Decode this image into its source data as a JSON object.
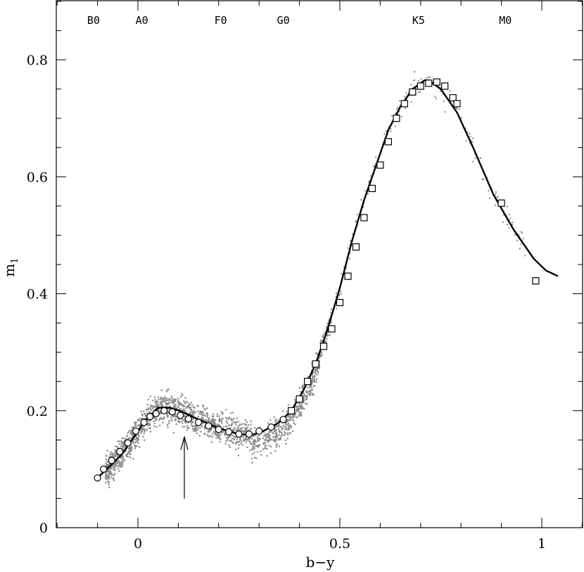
{
  "chart_data": {
    "type": "scatter",
    "xlabel": "b−y",
    "ylabel": "m",
    "ylabel_subscript": "1",
    "xlim": [
      -0.2,
      1.1
    ],
    "ylim": [
      0,
      0.9
    ],
    "x_ticks": [
      {
        "value": 0,
        "label": "0"
      },
      {
        "value": 0.5,
        "label": "0.5"
      },
      {
        "value": 1,
        "label": "1"
      }
    ],
    "y_ticks": [
      {
        "value": 0,
        "label": "0"
      },
      {
        "value": 0.2,
        "label": "0.2"
      },
      {
        "value": 0.4,
        "label": "0.4"
      },
      {
        "value": 0.6,
        "label": "0.6"
      },
      {
        "value": 0.8,
        "label": "0.8"
      }
    ],
    "spectral_types": [
      {
        "label": "B0",
        "x": -0.11
      },
      {
        "label": "A0",
        "x": 0.01
      },
      {
        "label": "F0",
        "x": 0.205
      },
      {
        "label": "G0",
        "x": 0.36
      },
      {
        "label": "K5",
        "x": 0.695
      },
      {
        "label": "M0",
        "x": 0.91
      }
    ],
    "fit_curve": {
      "x": [
        -0.1,
        -0.07,
        -0.04,
        -0.01,
        0.02,
        0.05,
        0.08,
        0.11,
        0.15,
        0.2,
        0.25,
        0.28,
        0.31,
        0.35,
        0.38,
        0.41,
        0.44,
        0.47,
        0.5,
        0.53,
        0.56,
        0.59,
        0.62,
        0.65,
        0.68,
        0.71,
        0.72,
        0.75,
        0.79,
        0.83,
        0.88,
        0.93,
        0.98,
        1.01,
        1.04
      ],
      "y": [
        0.085,
        0.105,
        0.125,
        0.155,
        0.185,
        0.205,
        0.205,
        0.198,
        0.185,
        0.17,
        0.16,
        0.158,
        0.165,
        0.18,
        0.2,
        0.235,
        0.28,
        0.34,
        0.41,
        0.49,
        0.56,
        0.62,
        0.68,
        0.72,
        0.75,
        0.765,
        0.765,
        0.75,
        0.71,
        0.65,
        0.57,
        0.51,
        0.46,
        0.44,
        0.43
      ]
    },
    "circles": {
      "x": [
        -0.1,
        -0.085,
        -0.065,
        -0.045,
        -0.025,
        -0.005,
        0.015,
        0.03,
        0.045,
        0.065,
        0.085,
        0.105,
        0.125,
        0.15,
        0.175,
        0.2,
        0.225,
        0.25,
        0.275,
        0.3,
        0.33,
        0.36
      ],
      "y": [
        0.085,
        0.1,
        0.115,
        0.13,
        0.145,
        0.165,
        0.18,
        0.19,
        0.195,
        0.2,
        0.198,
        0.192,
        0.186,
        0.18,
        0.174,
        0.168,
        0.164,
        0.16,
        0.16,
        0.165,
        0.172,
        0.185
      ]
    },
    "squares": {
      "x": [
        0.38,
        0.4,
        0.42,
        0.44,
        0.46,
        0.48,
        0.5,
        0.52,
        0.54,
        0.56,
        0.58,
        0.6,
        0.62,
        0.64,
        0.66,
        0.68,
        0.7,
        0.72,
        0.74,
        0.76,
        0.78,
        0.79,
        0.9,
        0.985
      ],
      "y": [
        0.2,
        0.22,
        0.25,
        0.28,
        0.31,
        0.34,
        0.385,
        0.43,
        0.48,
        0.53,
        0.58,
        0.62,
        0.66,
        0.7,
        0.725,
        0.745,
        0.755,
        0.76,
        0.762,
        0.755,
        0.735,
        0.725,
        0.555,
        0.422
      ]
    },
    "arrow": {
      "x": 0.115,
      "y_start": 0.05,
      "y_end": 0.155
    }
  }
}
